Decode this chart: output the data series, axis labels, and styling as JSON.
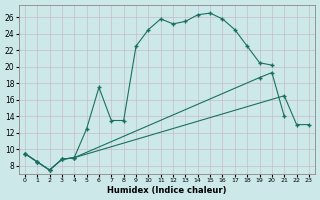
{
  "xlabel": "Humidex (Indice chaleur)",
  "bg_color": "#cce8e8",
  "line_color": "#1a7060",
  "grid_color": "#c8bcc8",
  "xlim": [
    -0.5,
    23.5
  ],
  "ylim": [
    7,
    27.5
  ],
  "xticks": [
    0,
    1,
    2,
    3,
    4,
    5,
    6,
    7,
    8,
    9,
    10,
    11,
    12,
    13,
    14,
    15,
    16,
    17,
    18,
    19,
    20,
    21,
    22,
    23
  ],
  "yticks": [
    8,
    10,
    12,
    14,
    16,
    18,
    20,
    22,
    24,
    26
  ],
  "s1_x": [
    0,
    1,
    2,
    3,
    4,
    5,
    6,
    7,
    8,
    9,
    10,
    11,
    12,
    13,
    14,
    15,
    16,
    17,
    18,
    19,
    20
  ],
  "s1_y": [
    9.5,
    8.5,
    7.5,
    8.8,
    9.0,
    12.5,
    17.5,
    13.5,
    13.5,
    22.5,
    24.5,
    25.8,
    25.2,
    25.5,
    26.3,
    26.5,
    25.8,
    24.5,
    22.5,
    20.5,
    20.2
  ],
  "s2_x": [
    0,
    1,
    2,
    3,
    4,
    19,
    20,
    21
  ],
  "s2_y": [
    9.5,
    8.5,
    7.5,
    8.8,
    9.0,
    18.7,
    19.3,
    14.0
  ],
  "s3_x": [
    0,
    1,
    2,
    3,
    4,
    21,
    22,
    23
  ],
  "s3_y": [
    9.5,
    8.5,
    7.5,
    8.8,
    9.0,
    16.5,
    13.0,
    13.0
  ]
}
